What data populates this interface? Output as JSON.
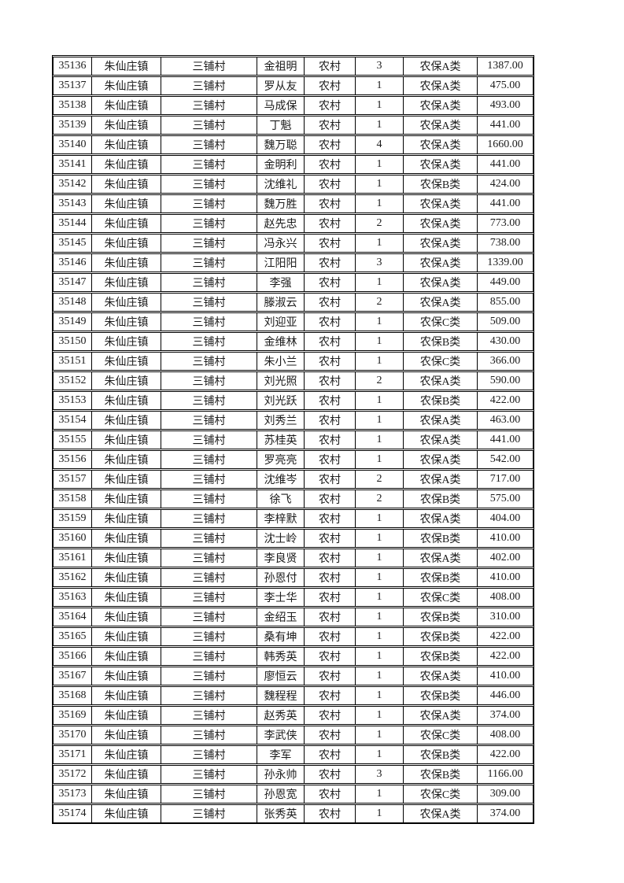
{
  "page": {
    "background_color": "#ffffff"
  },
  "table": {
    "border_color": "#000000",
    "text_color": "#1c1c1c",
    "column_keys": [
      "record_id",
      "town",
      "village",
      "person_name",
      "residence_type",
      "member_count",
      "insurance_category",
      "amount"
    ],
    "rows": [
      [
        "35136",
        "朱仙庄镇",
        "三铺村",
        "金祖明",
        "农村",
        "3",
        "农保A类",
        "1387.00"
      ],
      [
        "35137",
        "朱仙庄镇",
        "三铺村",
        "罗从友",
        "农村",
        "1",
        "农保A类",
        "475.00"
      ],
      [
        "35138",
        "朱仙庄镇",
        "三铺村",
        "马成保",
        "农村",
        "1",
        "农保A类",
        "493.00"
      ],
      [
        "35139",
        "朱仙庄镇",
        "三铺村",
        "丁魁",
        "农村",
        "1",
        "农保A类",
        "441.00"
      ],
      [
        "35140",
        "朱仙庄镇",
        "三铺村",
        "魏万聪",
        "农村",
        "4",
        "农保A类",
        "1660.00"
      ],
      [
        "35141",
        "朱仙庄镇",
        "三铺村",
        "金明利",
        "农村",
        "1",
        "农保A类",
        "441.00"
      ],
      [
        "35142",
        "朱仙庄镇",
        "三铺村",
        "沈维礼",
        "农村",
        "1",
        "农保B类",
        "424.00"
      ],
      [
        "35143",
        "朱仙庄镇",
        "三铺村",
        "魏万胜",
        "农村",
        "1",
        "农保A类",
        "441.00"
      ],
      [
        "35144",
        "朱仙庄镇",
        "三铺村",
        "赵先忠",
        "农村",
        "2",
        "农保A类",
        "773.00"
      ],
      [
        "35145",
        "朱仙庄镇",
        "三铺村",
        "冯永兴",
        "农村",
        "1",
        "农保A类",
        "738.00"
      ],
      [
        "35146",
        "朱仙庄镇",
        "三铺村",
        "江阳阳",
        "农村",
        "3",
        "农保A类",
        "1339.00"
      ],
      [
        "35147",
        "朱仙庄镇",
        "三铺村",
        "李强",
        "农村",
        "1",
        "农保A类",
        "449.00"
      ],
      [
        "35148",
        "朱仙庄镇",
        "三铺村",
        "滕淑云",
        "农村",
        "2",
        "农保A类",
        "855.00"
      ],
      [
        "35149",
        "朱仙庄镇",
        "三铺村",
        "刘迎亚",
        "农村",
        "1",
        "农保C类",
        "509.00"
      ],
      [
        "35150",
        "朱仙庄镇",
        "三铺村",
        "金维林",
        "农村",
        "1",
        "农保B类",
        "430.00"
      ],
      [
        "35151",
        "朱仙庄镇",
        "三铺村",
        "朱小兰",
        "农村",
        "1",
        "农保C类",
        "366.00"
      ],
      [
        "35152",
        "朱仙庄镇",
        "三铺村",
        "刘光照",
        "农村",
        "2",
        "农保A类",
        "590.00"
      ],
      [
        "35153",
        "朱仙庄镇",
        "三铺村",
        "刘光跃",
        "农村",
        "1",
        "农保B类",
        "422.00"
      ],
      [
        "35154",
        "朱仙庄镇",
        "三铺村",
        "刘秀兰",
        "农村",
        "1",
        "农保A类",
        "463.00"
      ],
      [
        "35155",
        "朱仙庄镇",
        "三铺村",
        "苏桂英",
        "农村",
        "1",
        "农保A类",
        "441.00"
      ],
      [
        "35156",
        "朱仙庄镇",
        "三铺村",
        "罗亮亮",
        "农村",
        "1",
        "农保A类",
        "542.00"
      ],
      [
        "35157",
        "朱仙庄镇",
        "三铺村",
        "沈维岑",
        "农村",
        "2",
        "农保A类",
        "717.00"
      ],
      [
        "35158",
        "朱仙庄镇",
        "三铺村",
        "徐飞",
        "农村",
        "2",
        "农保B类",
        "575.00"
      ],
      [
        "35159",
        "朱仙庄镇",
        "三铺村",
        "李梓默",
        "农村",
        "1",
        "农保A类",
        "404.00"
      ],
      [
        "35160",
        "朱仙庄镇",
        "三铺村",
        "沈士岭",
        "农村",
        "1",
        "农保B类",
        "410.00"
      ],
      [
        "35161",
        "朱仙庄镇",
        "三铺村",
        "李良贤",
        "农村",
        "1",
        "农保A类",
        "402.00"
      ],
      [
        "35162",
        "朱仙庄镇",
        "三铺村",
        "孙恩付",
        "农村",
        "1",
        "农保B类",
        "410.00"
      ],
      [
        "35163",
        "朱仙庄镇",
        "三铺村",
        "李士华",
        "农村",
        "1",
        "农保C类",
        "408.00"
      ],
      [
        "35164",
        "朱仙庄镇",
        "三铺村",
        "金绍玉",
        "农村",
        "1",
        "农保B类",
        "310.00"
      ],
      [
        "35165",
        "朱仙庄镇",
        "三铺村",
        "桑有坤",
        "农村",
        "1",
        "农保B类",
        "422.00"
      ],
      [
        "35166",
        "朱仙庄镇",
        "三铺村",
        "韩秀英",
        "农村",
        "1",
        "农保B类",
        "422.00"
      ],
      [
        "35167",
        "朱仙庄镇",
        "三铺村",
        "廖恒云",
        "农村",
        "1",
        "农保A类",
        "410.00"
      ],
      [
        "35168",
        "朱仙庄镇",
        "三铺村",
        "魏程程",
        "农村",
        "1",
        "农保B类",
        "446.00"
      ],
      [
        "35169",
        "朱仙庄镇",
        "三铺村",
        "赵秀英",
        "农村",
        "1",
        "农保A类",
        "374.00"
      ],
      [
        "35170",
        "朱仙庄镇",
        "三铺村",
        "李武侠",
        "农村",
        "1",
        "农保C类",
        "408.00"
      ],
      [
        "35171",
        "朱仙庄镇",
        "三铺村",
        "李军",
        "农村",
        "1",
        "农保B类",
        "422.00"
      ],
      [
        "35172",
        "朱仙庄镇",
        "三铺村",
        "孙永帅",
        "农村",
        "3",
        "农保B类",
        "1166.00"
      ],
      [
        "35173",
        "朱仙庄镇",
        "三铺村",
        "孙恩宽",
        "农村",
        "1",
        "农保C类",
        "309.00"
      ],
      [
        "35174",
        "朱仙庄镇",
        "三铺村",
        "张秀英",
        "农村",
        "1",
        "农保A类",
        "374.00"
      ]
    ]
  }
}
